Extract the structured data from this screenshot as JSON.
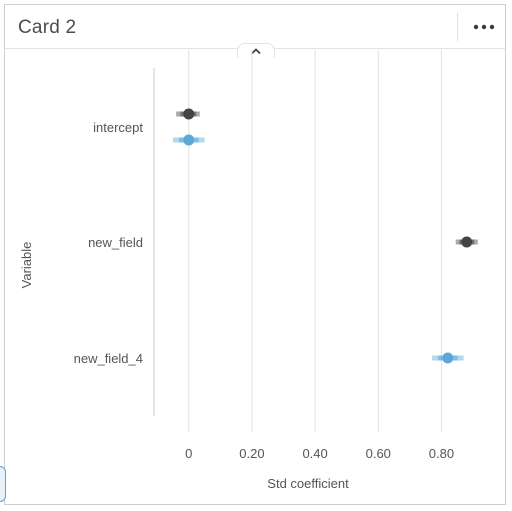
{
  "card": {
    "title": "Card 2",
    "menu_icon": "more-horizontal-icon",
    "collapse_icon": "chevron-up-icon"
  },
  "colors": {
    "series_dark": "#444444",
    "series_blue": "#5aa9d8",
    "grid": "#e2e2e2",
    "axis_text": "#555555"
  },
  "chart_data": {
    "type": "scatter",
    "title": "",
    "xlabel": "Std coefficient",
    "ylabel": "Variable",
    "categories": [
      "intercept",
      "new_field",
      "new_field_4"
    ],
    "xlim": [
      -0.11,
      0.96
    ],
    "xticks": [
      0,
      0.2,
      0.4,
      0.6,
      0.8
    ],
    "xtick_labels": [
      "0",
      "0.20",
      "0.40",
      "0.60",
      "0.80"
    ],
    "grid": true,
    "legend": "none",
    "series": [
      {
        "color": "#444444",
        "points": [
          {
            "category": "intercept",
            "value": 0.0,
            "low": -0.04,
            "high": 0.035
          }
        ]
      },
      {
        "color": "#444444",
        "points": [
          {
            "category": "new_field",
            "value": 0.88,
            "low": 0.845,
            "high": 0.915
          }
        ]
      },
      {
        "color": "#5aa9d8",
        "points": [
          {
            "category": "intercept",
            "value": 0.0,
            "low": -0.05,
            "high": 0.05
          }
        ]
      },
      {
        "color": "#5aa9d8",
        "points": [
          {
            "category": "new_field_4",
            "value": 0.82,
            "low": 0.77,
            "high": 0.87
          }
        ]
      }
    ]
  }
}
